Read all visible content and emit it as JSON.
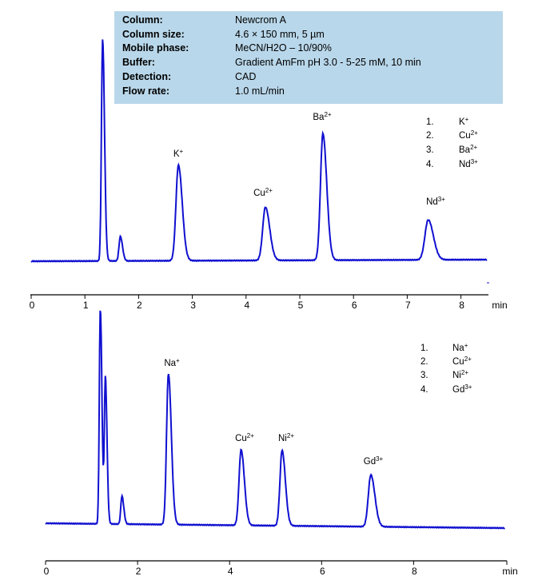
{
  "info": {
    "rows": [
      {
        "key": "Column:",
        "value": "Newcrom A"
      },
      {
        "key": "Column size:",
        "value": "4.6 × 150 mm, 5 µm"
      },
      {
        "key": "Mobile phase:",
        "value": "MeCN/H2O – 10/90%"
      },
      {
        "key": "Buffer:",
        "value": "Gradient AmFm pH 3.0 -  5-25  mM, 10 min"
      },
      {
        "key": "Detection:",
        "value": "CAD"
      },
      {
        "key": "Flow rate:",
        "value": "1.0 mL/min"
      }
    ]
  },
  "colors": {
    "trace": "#1010d0",
    "axis": "#000000",
    "info_bg": "#b9d7ea"
  },
  "chart_data": [
    {
      "type": "line",
      "title": "Chromatogram 1",
      "xlabel": "min",
      "xlim": [
        0,
        8.5
      ],
      "xticks": [
        0,
        1,
        2,
        3,
        4,
        5,
        6,
        7,
        8
      ],
      "grid": false,
      "legend_position": "upper-right",
      "legend": [
        {
          "num": "1.",
          "ion": "K",
          "charge": "+"
        },
        {
          "num": "2.",
          "ion": "Cu",
          "charge": "2+"
        },
        {
          "num": "3.",
          "ion": "Ba",
          "charge": "2+"
        },
        {
          "num": "4.",
          "ion": "Nd",
          "charge": "3+"
        }
      ],
      "baseline_relative": 0.0,
      "peaks": [
        {
          "label": "",
          "rt": 1.33,
          "height": 1.0,
          "width": 0.022
        },
        {
          "label": "",
          "rt": 1.66,
          "height": 0.11,
          "width": 0.025
        },
        {
          "label": "K",
          "charge": "+",
          "rt": 2.74,
          "height": 0.43,
          "width": 0.045
        },
        {
          "label": "Cu",
          "charge": "2+",
          "rt": 4.36,
          "height": 0.24,
          "width": 0.05
        },
        {
          "label": "Ba",
          "charge": "2+",
          "rt": 5.43,
          "height": 0.57,
          "width": 0.045
        },
        {
          "label": "Nd",
          "charge": "3+",
          "rt": 7.39,
          "height": 0.18,
          "width": 0.06
        }
      ]
    },
    {
      "type": "line",
      "title": "Chromatogram 2",
      "xlabel": "min",
      "xlim": [
        0,
        10
      ],
      "xticks": [
        0,
        2,
        4,
        6,
        8
      ],
      "grid": false,
      "legend_position": "upper-right",
      "legend": [
        {
          "num": "1.",
          "ion": "Na",
          "charge": "+"
        },
        {
          "num": "2.",
          "ion": "Cu",
          "charge": "2+"
        },
        {
          "num": "3.",
          "ion": "Ni",
          "charge": "2+"
        },
        {
          "num": "4.",
          "ion": "Gd",
          "charge": "3+"
        }
      ],
      "peaks": [
        {
          "label": "",
          "rt": 1.19,
          "height": 1.0,
          "width": 0.022
        },
        {
          "label": "",
          "rt": 1.3,
          "height": 0.68,
          "width": 0.022
        },
        {
          "label": "",
          "rt": 1.66,
          "height": 0.13,
          "width": 0.025
        },
        {
          "label": "Na",
          "charge": "+",
          "rt": 2.67,
          "height": 0.7,
          "width": 0.04
        },
        {
          "label": "Cu",
          "charge": "2+",
          "rt": 4.25,
          "height": 0.35,
          "width": 0.045
        },
        {
          "label": "Ni",
          "charge": "2+",
          "rt": 5.14,
          "height": 0.35,
          "width": 0.045
        },
        {
          "label": "Gd",
          "charge": "3+",
          "rt": 7.07,
          "height": 0.24,
          "width": 0.055
        }
      ]
    }
  ]
}
